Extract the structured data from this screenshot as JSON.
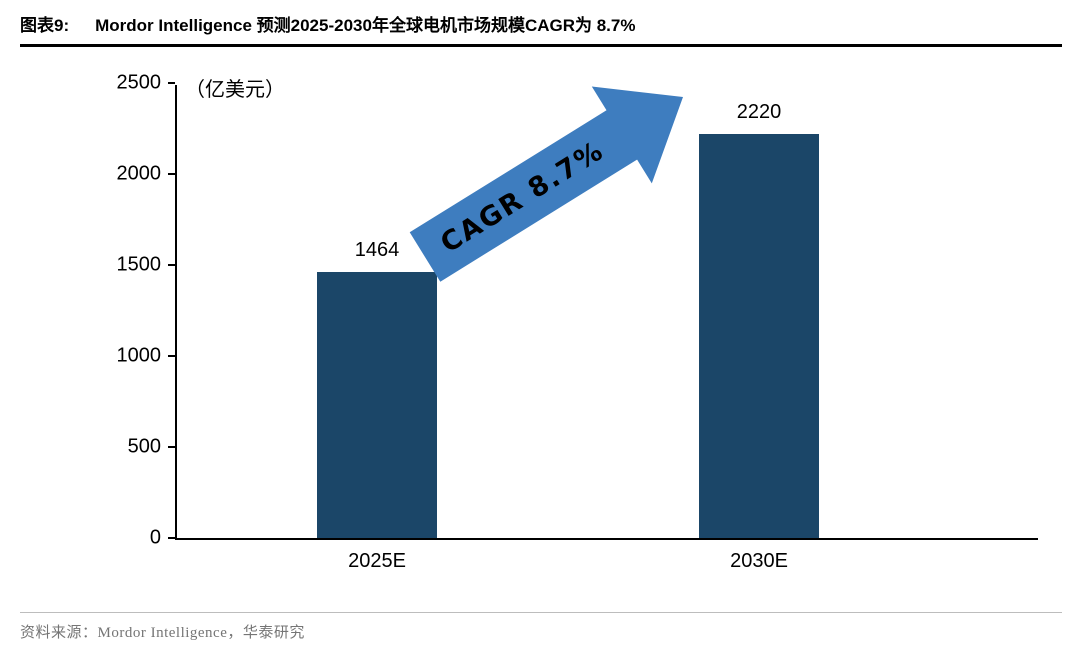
{
  "header": {
    "figure_label": "图表9:",
    "title": "Mordor Intelligence 预测2025-2030年全球电机市场规模CAGR为 8.7%"
  },
  "chart_data": {
    "type": "bar",
    "title": "Mordor Intelligence 预测2025-2030年全球电机市场规模CAGR为 8.7%",
    "unit_label": "（亿美元）",
    "categories": [
      "2025E",
      "2030E"
    ],
    "values": [
      1464,
      2220
    ],
    "ylim": [
      0,
      2500
    ],
    "yticks": [
      0,
      500,
      1000,
      1500,
      2000,
      2500
    ],
    "grid": false,
    "legend": "none",
    "bar_color": "#1B4668",
    "annotation": {
      "text": "CAGR 8.7%",
      "arrow_color": "#3E7DBF",
      "text_color": "#000000"
    }
  },
  "footer": {
    "source": "资料来源：Mordor Intelligence，华泰研究"
  }
}
